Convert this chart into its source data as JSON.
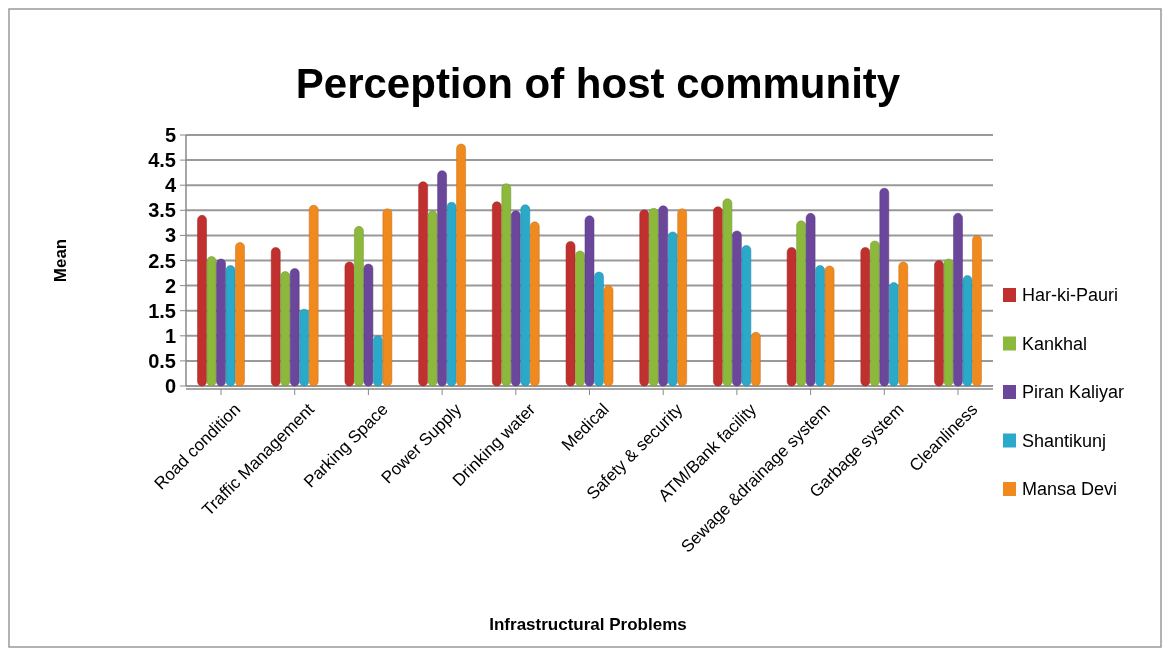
{
  "chart_data": {
    "type": "bar",
    "title": "Perception of host community",
    "xlabel": "Infrastructural Problems",
    "ylabel": "Mean",
    "categories": [
      "Road condition",
      "Traffic Management",
      "Parking Space",
      "Power Supply",
      "Drinking water",
      "Medical",
      "Safety & security",
      "ATM/Bank facility",
      "Sewage &drainage system",
      "Garbage system",
      "Cleanliness"
    ],
    "series": [
      {
        "name": "Har-ki-Pauri",
        "color": "#c0302e",
        "values": [
          3.4,
          2.76,
          2.47,
          4.07,
          3.67,
          2.88,
          3.51,
          3.57,
          2.76,
          2.76,
          2.5
        ]
      },
      {
        "name": "Kankhal",
        "color": "#8cb83c",
        "values": [
          2.58,
          2.28,
          3.18,
          3.49,
          4.03,
          2.69,
          3.54,
          3.73,
          3.29,
          2.89,
          2.53
        ]
      },
      {
        "name": "Piran Kaliyar",
        "color": "#6a479a",
        "values": [
          2.53,
          2.34,
          2.43,
          4.29,
          3.49,
          3.39,
          3.59,
          3.09,
          3.44,
          3.94,
          3.44
        ]
      },
      {
        "name": "Shantikunj",
        "color": "#2aa9c9",
        "values": [
          2.4,
          1.53,
          1.0,
          3.66,
          3.61,
          2.27,
          3.07,
          2.8,
          2.4,
          2.06,
          2.2
        ]
      },
      {
        "name": "Mansa Devi",
        "color": "#f08a1e",
        "values": [
          2.86,
          3.6,
          3.53,
          4.82,
          3.27,
          2.0,
          3.53,
          1.07,
          2.39,
          2.47,
          3.0
        ]
      }
    ],
    "ylim": [
      0,
      5
    ],
    "yticks": [
      0,
      0.5,
      1,
      1.5,
      2,
      2.5,
      3,
      3.5,
      4,
      4.5,
      5
    ],
    "grid": "y",
    "legend": "right"
  }
}
